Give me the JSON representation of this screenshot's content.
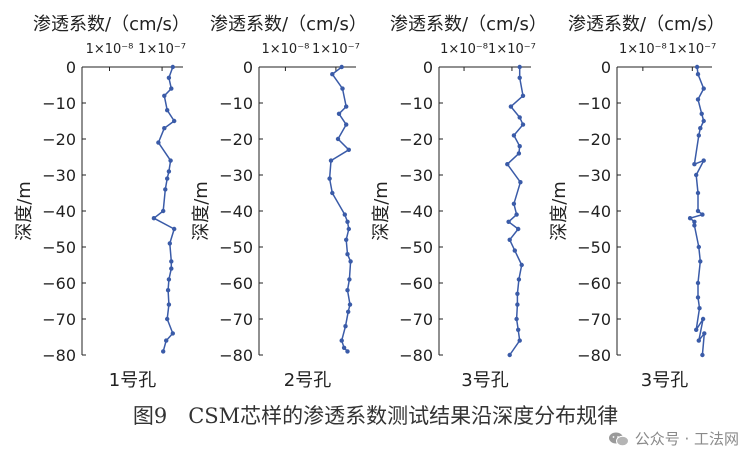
{
  "caption": "图9　CSM芯样的渗透系数测试结果沿深度分布规律",
  "watermark": {
    "text": "公众号 · 工法网",
    "icon": "wechat-icon"
  },
  "style": {
    "line_color": "#3a5ba8",
    "axis_color": "#222222"
  },
  "chart_data": [
    {
      "type": "line",
      "title": "渗透系数/（cm/s）",
      "xlabel": "1号孔",
      "ylabel": "深度/m",
      "xscale": "log",
      "xlim": [
        3e-09,
        2.5e-07
      ],
      "ylim": [
        0,
        -80
      ],
      "yticks": [
        0,
        -10,
        -20,
        -30,
        -40,
        -50,
        -60,
        -70,
        -80
      ],
      "xticks": [
        {
          "value": 1e-08,
          "label": "1×10⁻⁸"
        },
        {
          "value": 1e-07,
          "label": "1×10⁻⁷"
        }
      ],
      "series": [
        {
          "x": [
            1.6e-07,
            1.35e-07,
            1.5e-07,
            1.1e-07,
            1.25e-07,
            1.7e-07,
            1.1e-07,
            8.5e-08,
            1.45e-07,
            1.35e-07,
            1.25e-07,
            1.15e-07,
            1.05e-07,
            7e-08,
            1.7e-07,
            1.4e-07,
            1.5e-07,
            1.5e-07,
            1.35e-07,
            1.3e-07,
            1.35e-07,
            1.25e-07,
            1.6e-07,
            1.2e-07,
            1.05e-07
          ],
          "y": [
            0,
            -3,
            -6,
            -8,
            -12,
            -15,
            -17,
            -21,
            -26,
            -29,
            -31,
            -34,
            -40,
            -42,
            -45,
            -49,
            -54,
            -56,
            -59,
            -62,
            -66,
            -70,
            -74,
            -76,
            -79
          ]
        }
      ]
    },
    {
      "type": "line",
      "title": "渗透系数/（cm/s）",
      "xlabel": "2号孔",
      "ylabel": "深度/m",
      "xscale": "log",
      "xlim": [
        3e-09,
        2.5e-07
      ],
      "ylim": [
        0,
        -80
      ],
      "yticks": [
        0,
        -10,
        -20,
        -30,
        -40,
        -50,
        -60,
        -70,
        -80
      ],
      "xticks": [
        {
          "value": 1e-08,
          "label": "1×10⁻⁸"
        },
        {
          "value": 1e-07,
          "label": "1×10⁻⁷"
        }
      ],
      "series": [
        {
          "x": [
            1.3e-07,
            8.5e-08,
            1.35e-07,
            1.6e-07,
            1.15e-07,
            1.6e-07,
            1.1e-07,
            1.8e-07,
            8e-08,
            7.5e-08,
            8.5e-08,
            1.5e-07,
            1.7e-07,
            1.8e-07,
            1.6e-07,
            1.7e-07,
            1.95e-07,
            1.85e-07,
            1.7e-07,
            1.9e-07,
            1.75e-07,
            1.55e-07,
            1.3e-07,
            1.45e-07,
            1.7e-07
          ],
          "y": [
            0,
            -2,
            -6,
            -11,
            -13,
            -16,
            -20,
            -23,
            -26,
            -31,
            -35,
            -41,
            -43,
            -45,
            -48,
            -52,
            -54,
            -59,
            -62,
            -66,
            -68,
            -72,
            -76,
            -78,
            -79
          ]
        }
      ]
    },
    {
      "type": "line",
      "title": "渗透系数/（cm/s）",
      "xlabel": "3号孔",
      "ylabel": "深度/m",
      "xscale": "log",
      "xlim": [
        3e-09,
        2.5e-07
      ],
      "ylim": [
        0,
        -80
      ],
      "yticks": [
        0,
        -10,
        -20,
        -30,
        -40,
        -50,
        -60,
        -70,
        -80
      ],
      "xticks": [
        {
          "value": 1e-08,
          "label": "1×10⁻⁸"
        },
        {
          "value": 1e-07,
          "label": "1×10⁻⁷"
        }
      ],
      "series": [
        {
          "x": [
            1.45e-07,
            1.45e-07,
            1.7e-07,
            9.5e-08,
            1.45e-07,
            1.7e-07,
            1.1e-07,
            1.45e-07,
            1.4e-07,
            8e-08,
            1.5e-07,
            1.1e-07,
            1.25e-07,
            8.5e-08,
            1.35e-07,
            9e-08,
            1.15e-07,
            1.6e-07,
            1.4e-07,
            1.3e-07,
            1.3e-07,
            1.25e-07,
            1.35e-07,
            1.45e-07,
            9e-08
          ],
          "y": [
            0,
            -3,
            -8,
            -11,
            -14,
            -16,
            -19,
            -22,
            -24,
            -27,
            -32,
            -38,
            -41,
            -43,
            -45,
            -48,
            -51,
            -55,
            -59,
            -63,
            -66,
            -70,
            -73,
            -76,
            -80
          ]
        }
      ]
    },
    {
      "type": "line",
      "title": "渗透系数/（cm/s）",
      "xlabel": "3号孔",
      "ylabel": "深度/m",
      "xscale": "log",
      "xlim": [
        3e-09,
        2.5e-07
      ],
      "ylim": [
        0,
        -80
      ],
      "yticks": [
        0,
        -10,
        -20,
        -30,
        -40,
        -50,
        -60,
        -70,
        -80
      ],
      "xticks": [
        {
          "value": 1e-08,
          "label": "1×10⁻⁸"
        },
        {
          "value": 1e-07,
          "label": "1×10⁻⁷"
        }
      ],
      "series": [
        {
          "x": [
            1.25e-07,
            1.3e-07,
            1.7e-07,
            1.3e-07,
            1.55e-07,
            1.7e-07,
            1.45e-07,
            1.35e-07,
            1.1e-07,
            1.7e-07,
            1.2e-07,
            1.3e-07,
            1.3e-07,
            1.6e-07,
            9e-08,
            1.1e-07,
            1.1e-07,
            1.35e-07,
            1.45e-07,
            1.3e-07,
            1.3e-07,
            1.4e-07,
            1.2e-07,
            1.65e-07,
            1.35e-07,
            1.75e-07,
            1.6e-07
          ],
          "y": [
            0,
            -2,
            -6,
            -9,
            -13,
            -15,
            -17,
            -19,
            -27,
            -26,
            -30,
            -35,
            -40,
            -41,
            -42,
            -43,
            -44,
            -50,
            -54,
            -60,
            -64,
            -67,
            -73,
            -70,
            -76,
            -74,
            -80
          ]
        }
      ]
    }
  ]
}
